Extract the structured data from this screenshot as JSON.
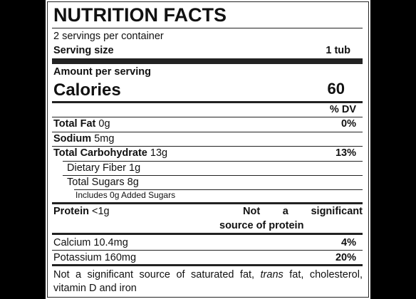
{
  "header": {
    "title": "NUTRITION FACTS",
    "servings": "2 servings per container",
    "serving_size_label": "Serving size",
    "serving_size_value": "1 tub"
  },
  "calories": {
    "heading": "Amount per serving",
    "label": "Calories",
    "value": "60"
  },
  "dv_heading": "% DV",
  "nutrients": [
    {
      "name": "Total Fat",
      "amount": "0g",
      "dv": "0%"
    },
    {
      "name": "Sodium",
      "amount": "5mg"
    },
    {
      "name": "Total Carbohydrate",
      "amount": "13g",
      "dv": "13%"
    },
    {
      "text": "Dietary Fiber 1g"
    },
    {
      "text": "Total Sugars 8g"
    },
    {
      "text": "Includes 0g Added Sugars"
    }
  ],
  "protein": {
    "name": "Protein",
    "amount": "<1g",
    "note_lines": [
      "Not a significant",
      "source of protein"
    ]
  },
  "minerals": [
    {
      "text": "Calcium 10.4mg",
      "dv": "4%"
    },
    {
      "text": "Potassium 160mg",
      "dv": "20%"
    }
  ],
  "footnote": {
    "parts": [
      "Not a significant source of saturated fat, ",
      "trans",
      " fat, cholesterol, vitamin D and iron"
    ]
  }
}
